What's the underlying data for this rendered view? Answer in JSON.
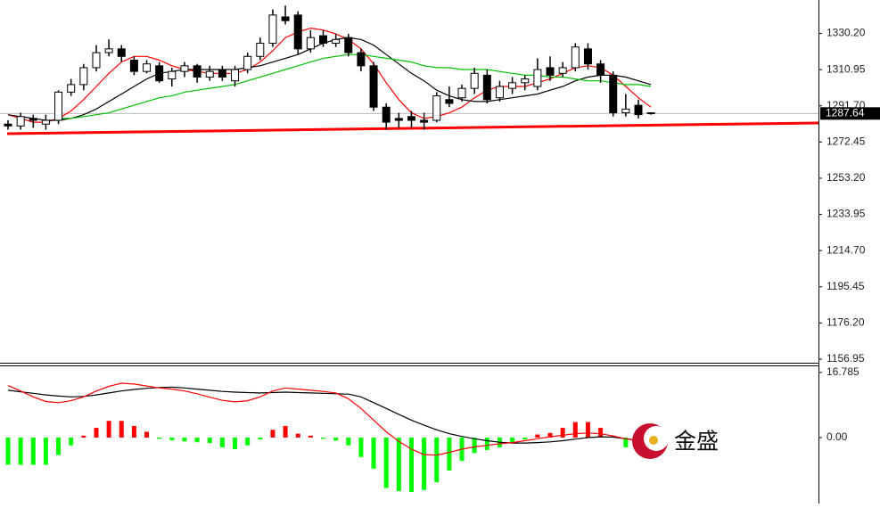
{
  "chart_data": [
    {
      "type": "candlestick",
      "open": [
        1282,
        1281,
        1285,
        1282,
        1284,
        1299,
        1303,
        1312,
        1320,
        1322,
        1316,
        1310,
        1313,
        1306,
        1310,
        1313,
        1307,
        1311,
        1305,
        1311,
        1318,
        1325,
        1339,
        1340,
        1322,
        1329,
        1325,
        1328,
        1320,
        1313,
        1291,
        1285,
        1286,
        1284,
        1284,
        1295,
        1296,
        1301,
        1308,
        1296,
        1301,
        1304,
        1302,
        1312,
        1309,
        1312,
        1322,
        1314,
        1308,
        1288,
        1292,
        1288
      ],
      "high": [
        1284,
        1288,
        1287,
        1287,
        1300,
        1306,
        1314,
        1324,
        1327,
        1324,
        1318,
        1316,
        1315,
        1312,
        1315,
        1314,
        1313,
        1313,
        1313,
        1320,
        1328,
        1343,
        1345,
        1342,
        1332,
        1332,
        1330,
        1330,
        1322,
        1315,
        1293,
        1288,
        1289,
        1288,
        1299,
        1302,
        1303,
        1312,
        1311,
        1305,
        1307,
        1308,
        1317,
        1318,
        1315,
        1325,
        1325,
        1316,
        1310,
        1298,
        1295,
        1288
      ],
      "low": [
        1279,
        1279,
        1280,
        1279,
        1282,
        1297,
        1300,
        1310,
        1318,
        1315,
        1308,
        1309,
        1304,
        1302,
        1307,
        1304,
        1305,
        1305,
        1302,
        1309,
        1316,
        1323,
        1335,
        1319,
        1320,
        1323,
        1323,
        1318,
        1310,
        1289,
        1279,
        1280,
        1280,
        1279,
        1283,
        1291,
        1294,
        1298,
        1293,
        1294,
        1298,
        1300,
        1300,
        1305,
        1307,
        1310,
        1311,
        1304,
        1286,
        1286,
        1285,
        1287
      ],
      "close": [
        1281,
        1286,
        1284,
        1284,
        1299,
        1303,
        1312,
        1320,
        1322,
        1318,
        1310,
        1314,
        1305,
        1310,
        1313,
        1307,
        1310,
        1307,
        1311,
        1318,
        1325,
        1340,
        1337,
        1322,
        1328,
        1325,
        1327,
        1320,
        1313,
        1291,
        1283,
        1284,
        1284,
        1283,
        1297,
        1293,
        1301,
        1309,
        1295,
        1302,
        1304,
        1306,
        1311,
        1308,
        1312,
        1323,
        1314,
        1308,
        1288,
        1290,
        1287,
        1287.64
      ],
      "up_color": "#ffffff",
      "down_color": "#000000",
      "series": [
        {
          "color": "#ff0000",
          "values": [
            1287,
            1285,
            1283,
            1283,
            1285,
            1289,
            1295,
            1302,
            1309,
            1315,
            1318,
            1318,
            1316,
            1313,
            1311,
            1310,
            1309,
            1309,
            1309,
            1311,
            1315,
            1321,
            1328,
            1331,
            1333,
            1332,
            1330,
            1327,
            1322,
            1314,
            1304,
            1295,
            1288,
            1285,
            1286,
            1288,
            1291,
            1296,
            1300,
            1302,
            1302,
            1302,
            1304,
            1306,
            1309,
            1312,
            1313,
            1312,
            1308,
            1302,
            1296,
            1291
          ]
        },
        {
          "color": "#000000",
          "values": [
            1287,
            1286,
            1285,
            1284,
            1284,
            1285,
            1287,
            1290,
            1294,
            1298,
            1302,
            1306,
            1309,
            1310,
            1311,
            1311,
            1311,
            1311,
            1311,
            1312,
            1313,
            1315,
            1317,
            1319,
            1322,
            1325,
            1327,
            1328,
            1327,
            1324,
            1319,
            1314,
            1309,
            1305,
            1300,
            1297,
            1295,
            1294,
            1294,
            1295,
            1296,
            1297,
            1298,
            1300,
            1302,
            1305,
            1307,
            1308,
            1308,
            1307,
            1305,
            1303
          ]
        },
        {
          "color": "#00c000",
          "values": [
            null,
            null,
            null,
            null,
            1285,
            1285,
            1286,
            1287,
            1288,
            1290,
            1292,
            1294,
            1296,
            1297,
            1299,
            1300,
            1301,
            1302,
            1303,
            1305,
            1307,
            1309,
            1311,
            1313,
            1315,
            1317,
            1318,
            1319,
            1319,
            1318,
            1317,
            1316,
            1315,
            1313,
            1312,
            1312,
            1311,
            1311,
            1311,
            1310,
            1309,
            1308,
            1308,
            1307,
            1307,
            1306,
            1305,
            1305,
            1304,
            1303,
            1303,
            1302
          ]
        }
      ],
      "trendline": {
        "color": "#ff0000",
        "values": [
          1276.9,
          1282.6
        ]
      },
      "last_price": 1287.64,
      "ylim": [
        1155.05,
        1348.0
      ],
      "yticks": [
        {
          "value": 1330.2,
          "label": "1330.20"
        },
        1310.95,
        {
          "value": 1291.7,
          "label": "1291.70"
        },
        1272.45,
        {
          "value": 1253.2,
          "label": "1253.20"
        },
        1233.95,
        {
          "value": 1214.7,
          "label": "1214.70"
        },
        1195.45,
        {
          "value": 1176.2,
          "label": "1176.20"
        },
        1156.95
      ]
    },
    {
      "type": "macd",
      "histogram": [
        -7,
        -7,
        -7,
        -7,
        -4.5,
        -2,
        0.5,
        2.5,
        4.3,
        4.3,
        3,
        1.5,
        -0.3,
        -0.7,
        -1,
        -1.2,
        -1.4,
        -2.5,
        -3,
        -2,
        -0.5,
        2,
        3,
        1,
        0.5,
        -0.3,
        -0.8,
        -2,
        -5,
        -8,
        -13,
        -13.8,
        -14,
        -13.5,
        -11.5,
        -8.5,
        -6,
        -4,
        -3.2,
        -2.5,
        -1.5,
        -0.5,
        0.8,
        1.2,
        2.5,
        4,
        4,
        2.5,
        0.5,
        -2.5,
        null,
        null
      ],
      "up_color": "#ff0000",
      "down_color": "#00ff00",
      "series": [
        {
          "color": "#000000",
          "values": [
            12.2,
            11.8,
            11.4,
            11,
            10.7,
            10.5,
            10.6,
            11,
            11.5,
            12,
            12.4,
            12.7,
            12.9,
            13,
            12.8,
            12.5,
            12.2,
            11.9,
            11.7,
            11.6,
            11.5,
            11.6,
            11.7,
            11.6,
            11.5,
            11.4,
            11.3,
            11.2,
            10.5,
            9,
            7.5,
            6,
            4.5,
            3.2,
            2,
            1,
            0.3,
            -0.3,
            -0.8,
            -1.2,
            -1.4,
            -1.4,
            -1.3,
            -1.1,
            -0.8,
            -0.4,
            0,
            0.2,
            0.1,
            -0.3,
            -0.7,
            null
          ]
        },
        {
          "color": "#ff0000",
          "values": [
            13.4,
            12,
            10.5,
            9.3,
            9,
            9.5,
            10.5,
            12,
            13.2,
            14,
            13.8,
            13.3,
            12.8,
            12.5,
            12,
            11.3,
            10.4,
            9.6,
            9.2,
            9.5,
            10.5,
            12,
            12.8,
            12.5,
            12.2,
            11.9,
            11.5,
            10,
            7.5,
            4.5,
            1.5,
            -1,
            -3,
            -4.4,
            -4.5,
            -3.8,
            -3,
            -2.4,
            -2,
            -1.6,
            -1.3,
            -0.8,
            -0.3,
            0.2,
            0.6,
            1,
            1.2,
            1,
            0.4,
            -0.3,
            -0.9,
            null
          ]
        }
      ],
      "ylim": [
        -17,
        18.6
      ],
      "yticks": [
        {
          "value": 0,
          "label": "0.00"
        },
        16.785
      ]
    }
  ],
  "watermark": "金盛"
}
